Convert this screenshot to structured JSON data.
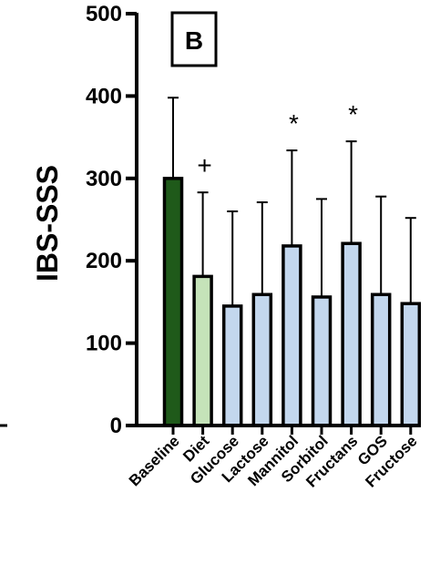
{
  "chart_data": {
    "type": "bar",
    "panel_label": "B",
    "ylabel": "IBS-SSS",
    "ylim": [
      0,
      500
    ],
    "yticks": [
      "0",
      "100",
      "200",
      "300",
      "400",
      "500"
    ],
    "categories": [
      "Baseline",
      "Diet",
      "Glucose",
      "Lactose",
      "Mannitol",
      "Sorbitol",
      "Fructans",
      "GOS",
      "Fructose"
    ],
    "values": [
      300,
      181,
      145,
      159,
      218,
      156,
      221,
      159,
      148
    ],
    "error_upper": [
      398,
      283,
      260,
      271,
      334,
      275,
      345,
      278,
      252
    ],
    "annotations": [
      "",
      "+",
      "",
      "",
      "*",
      "",
      "*",
      "",
      ""
    ],
    "colors": {
      "baseline": "#1f5a1a",
      "diet": "#c5e3b9",
      "challenge": "#c3d7ee",
      "stroke": "#000000"
    },
    "bar_colors": [
      "#1f5a1a",
      "#c5e3b9",
      "#c3d7ee",
      "#c3d7ee",
      "#c3d7ee",
      "#c3d7ee",
      "#c3d7ee",
      "#c3d7ee",
      "#c3d7ee"
    ]
  }
}
